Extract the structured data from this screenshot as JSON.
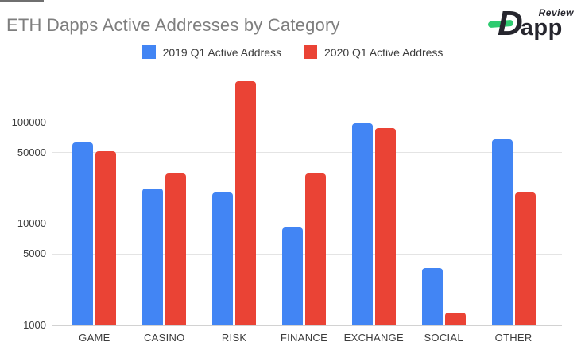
{
  "page": {
    "title": "ETH Dapps Active Addresses by Category"
  },
  "logo": {
    "d": "D",
    "rest": "app",
    "tagline": "Review",
    "accent_color": "#2ecb70",
    "text_color": "#26262e"
  },
  "legend": {
    "items": [
      {
        "label": "2019 Q1 Active Address",
        "color": "#4285F4"
      },
      {
        "label": "2020 Q1 Active Address",
        "color": "#EA4335"
      }
    ]
  },
  "colors": {
    "title_text": "#7e7e7e",
    "axis_text": "#3c3c3c",
    "gridline": "#e4e4e4",
    "baseline": "#d2d2d2",
    "background": "#ffffff"
  },
  "chart_data": {
    "type": "bar",
    "title": "ETH Dapps Active Addresses by Category",
    "xlabel": "",
    "ylabel": "",
    "y_scale": "log",
    "ylim": [
      1000,
      280000
    ],
    "y_ticks": [
      1000,
      5000,
      10000,
      50000,
      100000
    ],
    "y_tick_labels": [
      "1000",
      "5000",
      "10000",
      "50000",
      "100000"
    ],
    "grid": true,
    "legend_position": "top",
    "categories": [
      "GAME",
      "CASINO",
      "RISK",
      "FINANCE",
      "EXCHANGE",
      "SOCIAL",
      "OTHER"
    ],
    "series": [
      {
        "name": "2019 Q1 Active Address",
        "color": "#4285F4",
        "values": [
          62000,
          22000,
          20000,
          9000,
          97000,
          3600,
          67000
        ]
      },
      {
        "name": "2020 Q1 Active Address",
        "color": "#EA4335",
        "values": [
          51000,
          31000,
          250000,
          31000,
          87000,
          1300,
          20000
        ]
      }
    ]
  }
}
